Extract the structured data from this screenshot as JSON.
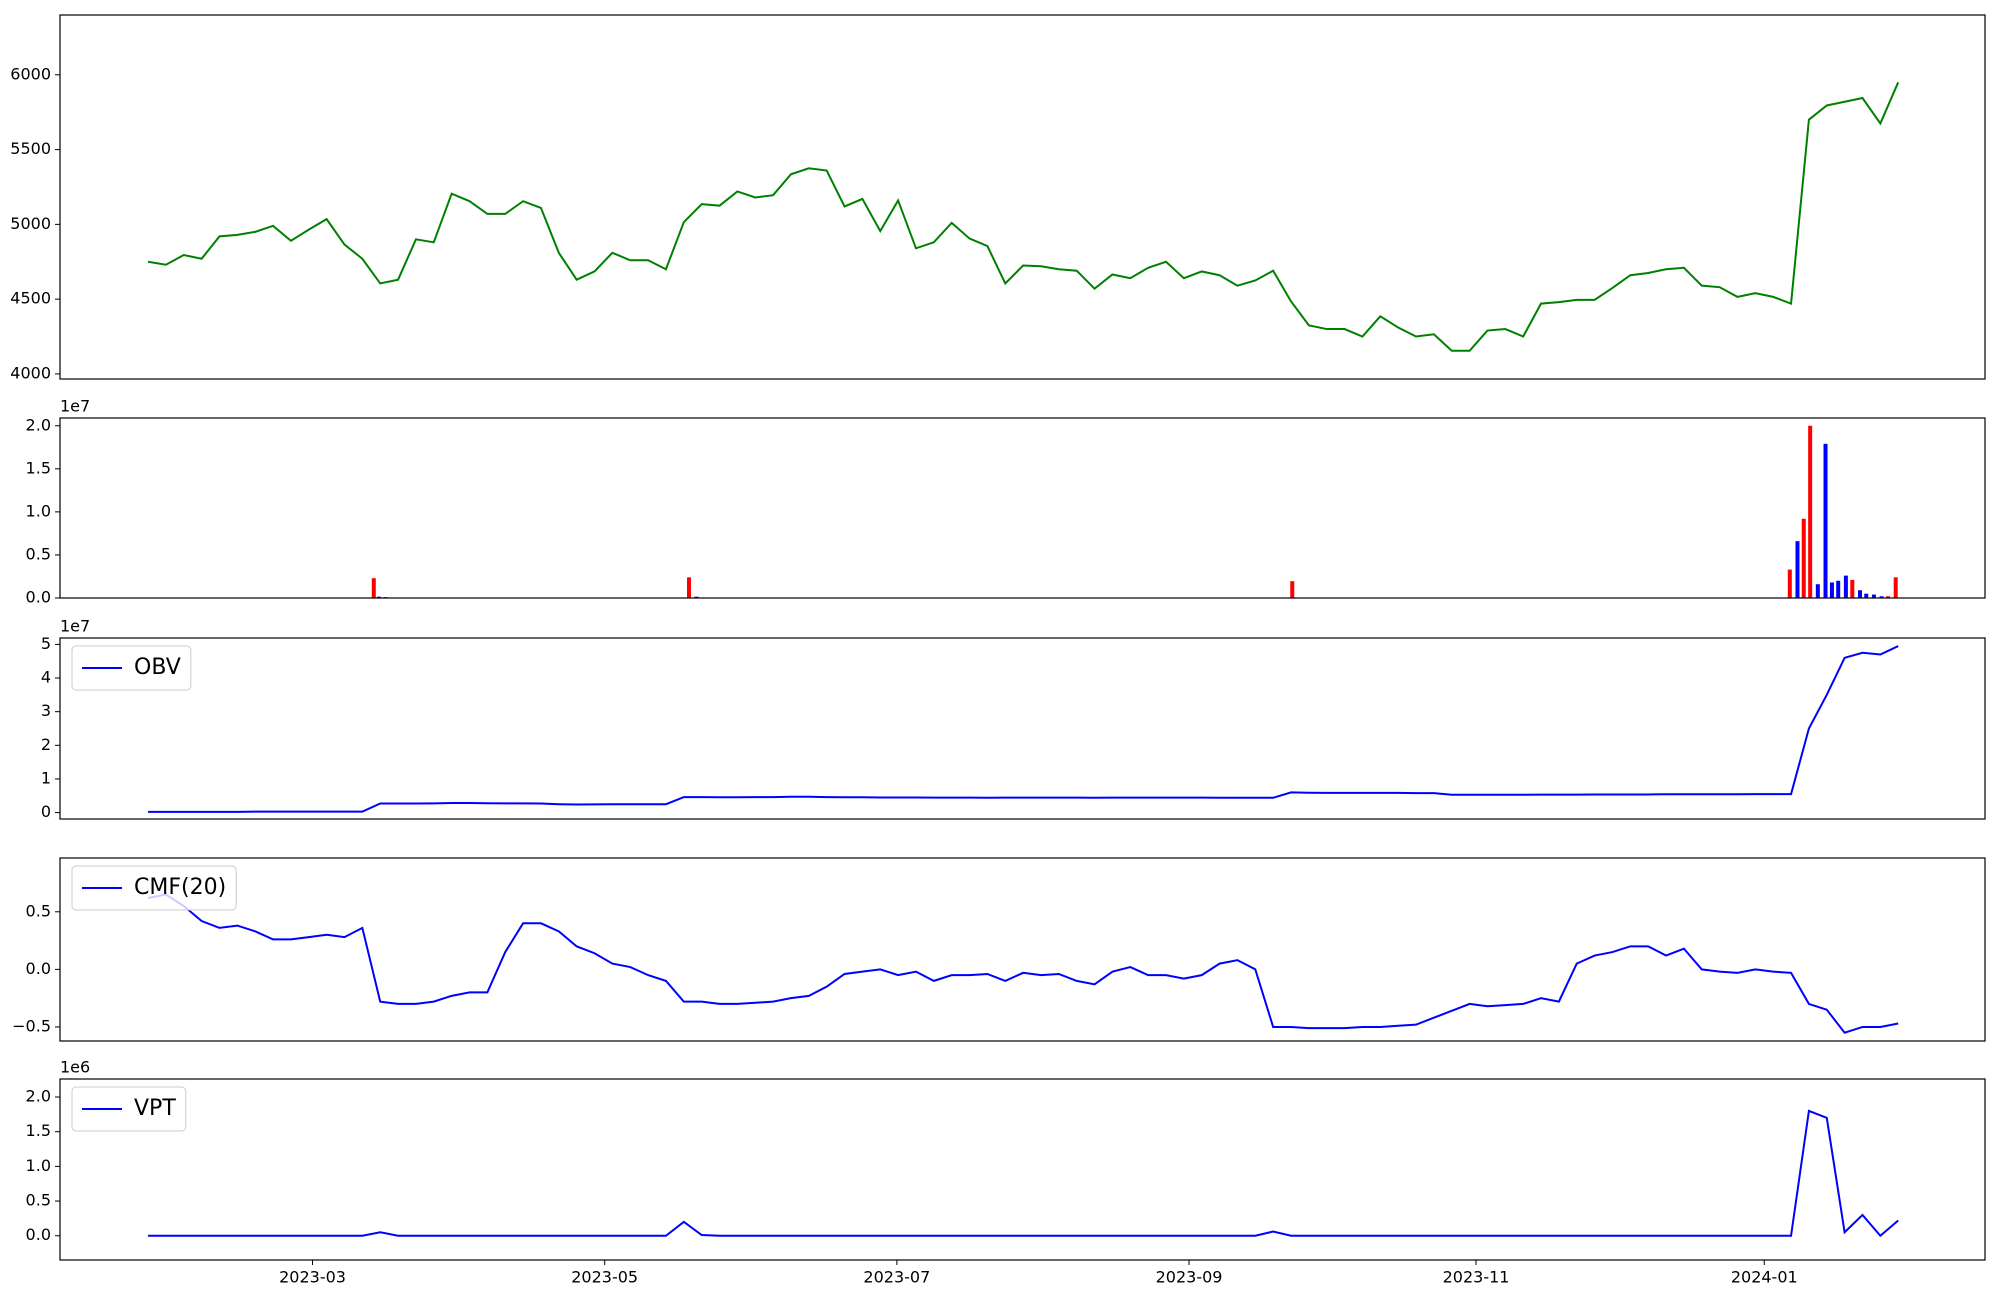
{
  "chart_data": [
    {
      "type": "line",
      "xlim": [
        -4.93,
        102.86
      ],
      "ylim": [
        3966,
        6400
      ],
      "yticks": [
        4000,
        4500,
        5000,
        5500,
        6000
      ],
      "series": [
        {
          "color": "#008000",
          "values": [
            4750,
            4730,
            4795,
            4770,
            4920,
            4930,
            4950,
            4990,
            4890,
            4965,
            5035,
            4865,
            4770,
            4605,
            4630,
            4900,
            4880,
            5205,
            5155,
            5070,
            5070,
            5155,
            5110,
            4810,
            4630,
            4685,
            4810,
            4760,
            4760,
            4700,
            5015,
            5135,
            5125,
            5220,
            5180,
            5195,
            5335,
            5375,
            5360,
            5120,
            5170,
            4955,
            5160,
            4840,
            4880,
            5010,
            4905,
            4855,
            4605,
            4725,
            4720,
            4700,
            4690,
            4570,
            4665,
            4640,
            4710,
            4750,
            4640,
            4685,
            4660,
            4590,
            4625,
            4690,
            4485,
            4325,
            4300,
            4300,
            4250,
            4385,
            4310,
            4250,
            4265,
            4155,
            4155,
            4290,
            4300,
            4250,
            4470,
            4480,
            4495,
            4495,
            4575,
            4660,
            4675,
            4700,
            4710,
            4590,
            4580,
            4515,
            4540,
            4515,
            4470,
            5700,
            5795,
            5820,
            5845,
            5675,
            5950
          ]
        }
      ]
    },
    {
      "type": "bar",
      "xlim": [
        -4.93,
        102.86
      ],
      "ylim": [
        0,
        20900000
      ],
      "y_offset_label": "1e7",
      "yticks": [
        {
          "value": 0,
          "label": "0.0"
        },
        {
          "value": 5000000,
          "label": "0.5"
        },
        {
          "value": 10000000,
          "label": "1.0"
        },
        {
          "value": 15000000,
          "label": "1.5"
        },
        {
          "value": 20000000,
          "label": "2.0"
        }
      ],
      "x": [
        12.64,
        12.93,
        13.29,
        30.29,
        30.71,
        64.07,
        91.93,
        92.36,
        92.71,
        93.07,
        93.5,
        93.93,
        94.29,
        94.64,
        95.07,
        95.43,
        95.86,
        96.21,
        96.64,
        97.07,
        97.43,
        97.86
      ],
      "values": [
        2300000,
        150000,
        100000,
        2400000,
        150000,
        1950000,
        3300000,
        6600000,
        9200000,
        20000000,
        1600000,
        17900000,
        1800000,
        2000000,
        2600000,
        2100000,
        900000,
        500000,
        400000,
        200000,
        200000,
        2400000
      ],
      "colors": [
        "#ff0000",
        "#0000ff",
        "#0000ff",
        "#ff0000",
        "#0000ff",
        "#ff0000",
        "#ff0000",
        "#0000ff",
        "#ff0000",
        "#ff0000",
        "#0000ff",
        "#0000ff",
        "#0000ff",
        "#0000ff",
        "#0000ff",
        "#ff0000",
        "#0000ff",
        "#0000ff",
        "#0000ff",
        "#0000ff",
        "#ff0000",
        "#ff0000"
      ]
    },
    {
      "type": "line",
      "xlim": [
        -4.93,
        102.86
      ],
      "ylim": [
        -1900000,
        51900000
      ],
      "y_offset_label": "1e7",
      "legend": "upper left",
      "yticks": [
        {
          "value": 0,
          "label": "0"
        },
        {
          "value": 10000000,
          "label": "1"
        },
        {
          "value": 20000000,
          "label": "2"
        },
        {
          "value": 30000000,
          "label": "3"
        },
        {
          "value": 40000000,
          "label": "4"
        },
        {
          "value": 50000000,
          "label": "5"
        }
      ],
      "series": [
        {
          "name": "OBV",
          "color": "#0000ff",
          "values": [
            200000,
            200000,
            200000,
            200000,
            200000,
            200000,
            300000,
            300000,
            300000,
            300000,
            300000,
            300000,
            300000,
            2700000,
            2700000,
            2700000,
            2750000,
            2850000,
            2850000,
            2800000,
            2750000,
            2750000,
            2700000,
            2500000,
            2400000,
            2450000,
            2500000,
            2500000,
            2500000,
            2500000,
            4600000,
            4600000,
            4550000,
            4550000,
            4600000,
            4600000,
            4700000,
            4700000,
            4600000,
            4550000,
            4550000,
            4500000,
            4500000,
            4500000,
            4450000,
            4450000,
            4450000,
            4400000,
            4450000,
            4450000,
            4450000,
            4450000,
            4450000,
            4400000,
            4450000,
            4450000,
            4450000,
            4450000,
            4450000,
            4450000,
            4400000,
            4400000,
            4400000,
            4400000,
            6000000,
            5900000,
            5850000,
            5850000,
            5850000,
            5850000,
            5850000,
            5800000,
            5800000,
            5300000,
            5300000,
            5300000,
            5300000,
            5300000,
            5350000,
            5350000,
            5350000,
            5400000,
            5400000,
            5400000,
            5400000,
            5450000,
            5450000,
            5450000,
            5450000,
            5450000,
            5500000,
            5500000,
            5500000,
            25000000,
            35000000,
            46000000,
            47500000,
            47000000,
            49500000
          ]
        }
      ]
    },
    {
      "type": "line",
      "xlim": [
        -4.93,
        102.86
      ],
      "ylim": [
        -0.622,
        0.967
      ],
      "legend": "upper left",
      "yticks": [
        {
          "value": -0.5,
          "label": "−0.5"
        },
        {
          "value": 0,
          "label": "0.0"
        },
        {
          "value": 0.5,
          "label": "0.5"
        }
      ],
      "series": [
        {
          "name": "CMF(20)",
          "color": "#0000ff",
          "values": [
            0.62,
            0.65,
            0.55,
            0.42,
            0.36,
            0.38,
            0.33,
            0.26,
            0.26,
            0.28,
            0.3,
            0.28,
            0.36,
            -0.28,
            -0.3,
            -0.3,
            -0.28,
            -0.23,
            -0.2,
            -0.2,
            0.15,
            0.4,
            0.4,
            0.33,
            0.2,
            0.14,
            0.05,
            0.02,
            -0.05,
            -0.1,
            -0.28,
            -0.28,
            -0.3,
            -0.3,
            -0.29,
            -0.28,
            -0.25,
            -0.23,
            -0.15,
            -0.04,
            -0.02,
            0.0,
            -0.05,
            -0.02,
            -0.1,
            -0.05,
            -0.05,
            -0.04,
            -0.1,
            -0.03,
            -0.05,
            -0.04,
            -0.1,
            -0.13,
            -0.02,
            0.02,
            -0.05,
            -0.05,
            -0.08,
            -0.05,
            0.05,
            0.08,
            0.0,
            -0.5,
            -0.5,
            -0.51,
            -0.51,
            -0.51,
            -0.5,
            -0.5,
            -0.49,
            -0.48,
            -0.42,
            -0.36,
            -0.3,
            -0.32,
            -0.31,
            -0.3,
            -0.25,
            -0.28,
            0.05,
            0.12,
            0.15,
            0.2,
            0.2,
            0.12,
            0.18,
            0.0,
            -0.02,
            -0.03,
            0.0,
            -0.02,
            -0.03,
            -0.3,
            -0.35,
            -0.55,
            -0.5,
            -0.5,
            -0.47
          ]
        }
      ]
    },
    {
      "type": "line",
      "xlim": [
        -4.93,
        102.86
      ],
      "ylim": [
        -350000,
        2260000
      ],
      "y_offset_label": "1e6",
      "legend": "upper left",
      "yticks": [
        {
          "value": 0,
          "label": "0.0"
        },
        {
          "value": 500000,
          "label": "0.5"
        },
        {
          "value": 1000000,
          "label": "1.0"
        },
        {
          "value": 1500000,
          "label": "1.5"
        },
        {
          "value": 2000000,
          "label": "2.0"
        }
      ],
      "xticks": [
        {
          "value": 9.21,
          "label": "2023-03"
        },
        {
          "value": 25.57,
          "label": "2023-05"
        },
        {
          "value": 41.93,
          "label": "2023-07"
        },
        {
          "value": 58.29,
          "label": "2023-09"
        },
        {
          "value": 74.36,
          "label": "2023-11"
        },
        {
          "value": 90.5,
          "label": "2024-01"
        }
      ],
      "series": [
        {
          "name": "VPT",
          "color": "#0000ff",
          "values": [
            0,
            0,
            0,
            0,
            0,
            0,
            0,
            0,
            0,
            0,
            0,
            0,
            0,
            50000,
            0,
            0,
            0,
            0,
            0,
            0,
            0,
            0,
            0,
            0,
            0,
            0,
            0,
            0,
            0,
            0,
            200000,
            10000,
            0,
            0,
            0,
            0,
            0,
            0,
            0,
            0,
            0,
            0,
            0,
            0,
            0,
            0,
            0,
            0,
            0,
            0,
            0,
            0,
            0,
            0,
            0,
            0,
            0,
            0,
            0,
            0,
            0,
            0,
            0,
            60000,
            0,
            0,
            0,
            0,
            0,
            0,
            0,
            0,
            0,
            0,
            0,
            0,
            0,
            0,
            0,
            0,
            0,
            0,
            0,
            0,
            0,
            0,
            0,
            0,
            0,
            0,
            0,
            0,
            0,
            1800000,
            1700000,
            50000,
            300000,
            0,
            220000
          ]
        }
      ]
    }
  ]
}
